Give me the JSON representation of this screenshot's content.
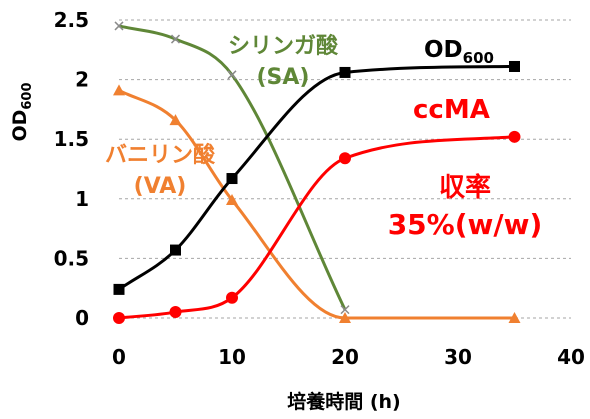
{
  "chart_data": {
    "type": "line",
    "xlabel": "培養時間 (h)",
    "ylabel": "OD",
    "ylabel_sub": "600",
    "xlim": [
      0,
      40
    ],
    "ylim": [
      0,
      2.5
    ],
    "x_ticks": [
      "0",
      "10",
      "20",
      "30",
      "40"
    ],
    "y_ticks": [
      "0",
      "0.5",
      "1",
      "1.5",
      "2",
      "2.5"
    ],
    "grid": "horizontal",
    "series": [
      {
        "key": "od",
        "name": "OD",
        "name_sub": "600",
        "color": "#000000",
        "marker": "square",
        "x": [
          0,
          5,
          10,
          20,
          35
        ],
        "y": [
          0.24,
          0.57,
          1.17,
          2.06,
          2.11
        ]
      },
      {
        "key": "ccma",
        "name": "ccMA",
        "color": "#ff0000",
        "marker": "circle",
        "x": [
          0,
          5,
          10,
          20,
          35
        ],
        "y": [
          0.0,
          0.05,
          0.17,
          1.34,
          1.52
        ]
      },
      {
        "key": "sa",
        "name_line1": "シリンガ酸",
        "name_line2": "(SA)",
        "color": "#5f8737",
        "marker": "x",
        "x": [
          0,
          5,
          10,
          20
        ],
        "y": [
          2.45,
          2.34,
          2.04,
          0.07
        ]
      },
      {
        "key": "va",
        "name_line1": "バニリン酸",
        "name_line2": "(VA)",
        "color": "#f08030",
        "marker": "triangle",
        "x": [
          0,
          5,
          10,
          20,
          35
        ],
        "y": [
          1.91,
          1.66,
          0.99,
          0.0,
          0.0
        ]
      }
    ],
    "annotation": {
      "line1": "収率",
      "line2": "35%(w/w)",
      "color": "#ff0000"
    }
  }
}
